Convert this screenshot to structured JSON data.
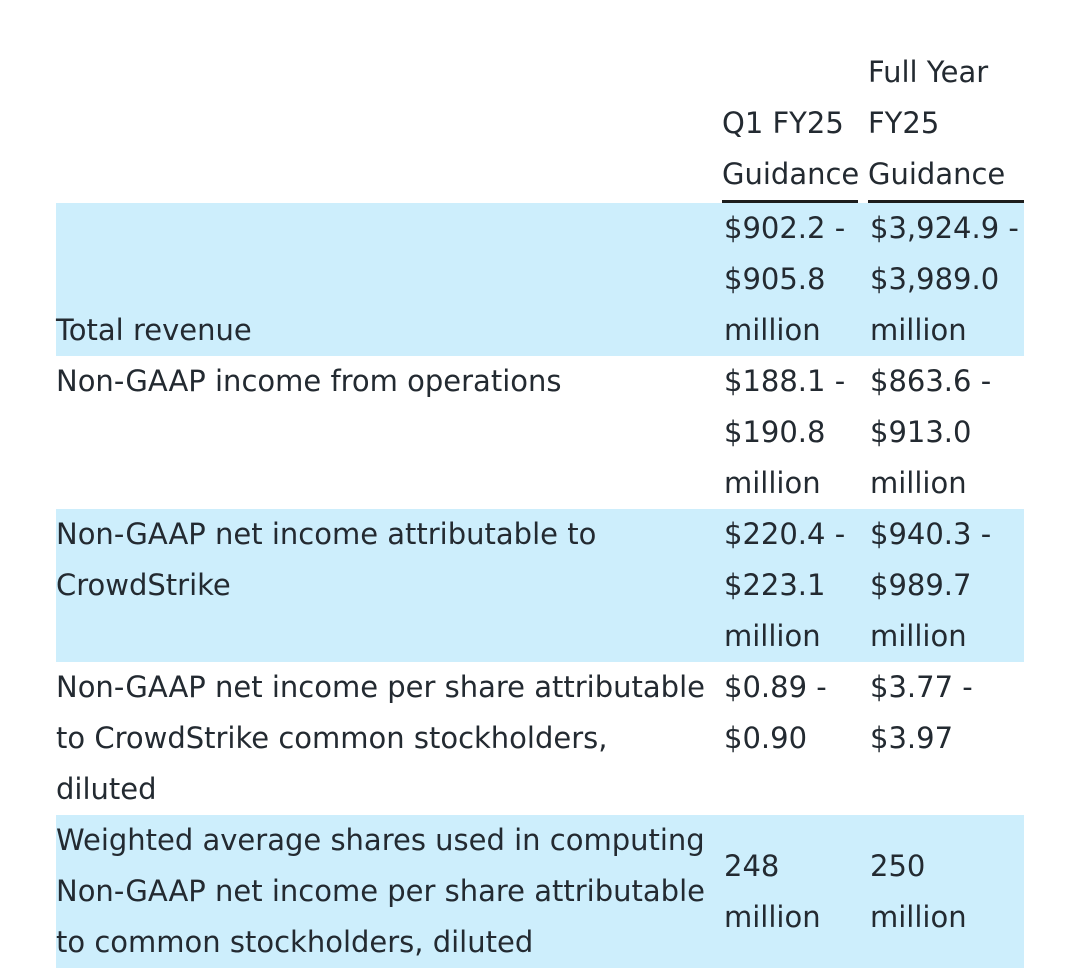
{
  "table": {
    "headers": {
      "label": "",
      "q1": "Q1 FY25 Guidance",
      "fy": "Full Year FY25 Guidance"
    },
    "rows": [
      {
        "label": "Total revenue",
        "q1": "$902.2 - $905.8 million",
        "fy": "$3,924.9 - $3,989.0 million"
      },
      {
        "label": "Non-GAAP income from operations",
        "q1": "$188.1 - $190.8 million",
        "fy": "$863.6 - $913.0 million"
      },
      {
        "label": "Non-GAAP net income attributable to CrowdStrike",
        "q1": "$220.4 - $223.1 million",
        "fy": "$940.3 - $989.7 million"
      },
      {
        "label": "Non-GAAP net income per share attributable to CrowdStrike common stockholders, diluted",
        "q1": "$0.89 - $0.90",
        "fy": "$3.77 - $3.97"
      },
      {
        "label": "Weighted average shares used in computing Non-GAAP net income per share attributable to common stockholders, diluted",
        "q1": "248 million",
        "fy": "250 million"
      }
    ]
  },
  "colors": {
    "shaded_row": "#cdeefc",
    "text": "#232a31",
    "rule": "#1d1d1d"
  }
}
